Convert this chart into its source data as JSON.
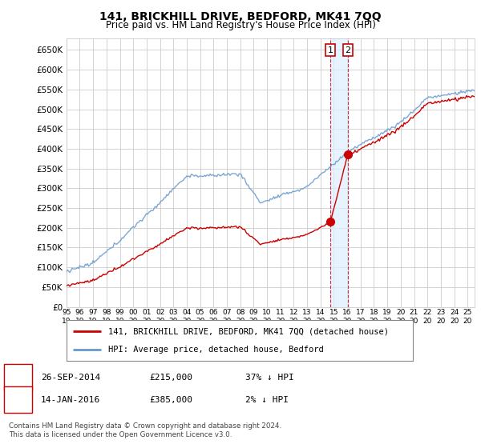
{
  "title": "141, BRICKHILL DRIVE, BEDFORD, MK41 7QQ",
  "subtitle": "Price paid vs. HM Land Registry's House Price Index (HPI)",
  "legend_line1": "141, BRICKHILL DRIVE, BEDFORD, MK41 7QQ (detached house)",
  "legend_line2": "HPI: Average price, detached house, Bedford",
  "transaction1_label": "1",
  "transaction1_date": "26-SEP-2014",
  "transaction1_price": "£215,000",
  "transaction1_hpi": "37% ↓ HPI",
  "transaction2_label": "2",
  "transaction2_date": "14-JAN-2016",
  "transaction2_price": "£385,000",
  "transaction2_hpi": "2% ↓ HPI",
  "footer": "Contains HM Land Registry data © Crown copyright and database right 2024.\nThis data is licensed under the Open Government Licence v3.0.",
  "line1_color": "#cc0000",
  "line2_color": "#6699cc",
  "shade_color": "#ddeeff",
  "grid_color": "#cccccc",
  "background_color": "#ffffff",
  "marker_date1": 2014.74,
  "marker_date2": 2016.04,
  "marker_val1": 215000,
  "marker_val2": 385000,
  "ylim_min": 0,
  "ylim_max": 680000,
  "xlim_min": 1995.0,
  "xlim_max": 2025.5,
  "yticks": [
    0,
    50000,
    100000,
    150000,
    200000,
    250000,
    300000,
    350000,
    400000,
    450000,
    500000,
    550000,
    600000,
    650000
  ],
  "xtick_labels": [
    "95",
    "96",
    "97",
    "98",
    "99",
    "00",
    "01",
    "02",
    "03",
    "04",
    "05",
    "06",
    "07",
    "08",
    "09",
    "10",
    "11",
    "12",
    "13",
    "14",
    "15",
    "16",
    "17",
    "18",
    "19",
    "20",
    "21",
    "22",
    "23",
    "24",
    "25"
  ],
  "xtick_vals": [
    1995,
    1996,
    1997,
    1998,
    1999,
    2000,
    2001,
    2002,
    2003,
    2004,
    2005,
    2006,
    2007,
    2008,
    2009,
    2010,
    2011,
    2012,
    2013,
    2014,
    2015,
    2016,
    2017,
    2018,
    2019,
    2020,
    2021,
    2022,
    2023,
    2024,
    2025
  ]
}
